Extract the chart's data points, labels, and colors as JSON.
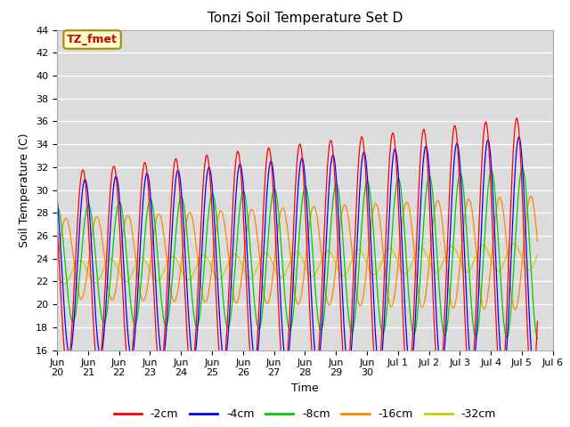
{
  "title": "Tonzi Soil Temperature Set D",
  "xlabel": "Time",
  "ylabel": "Soil Temperature (C)",
  "ylim": [
    16,
    44
  ],
  "yticks": [
    16,
    18,
    20,
    22,
    24,
    26,
    28,
    30,
    32,
    34,
    36,
    38,
    40,
    42,
    44
  ],
  "background_color": "#dcdcdc",
  "line_colors": {
    "-2cm": "#ff0000",
    "-4cm": "#0000ff",
    "-8cm": "#00cc00",
    "-16cm": "#ff8800",
    "-32cm": "#cccc00"
  },
  "legend_label": "TZ_fmet",
  "legend_box_color": "#ffffcc",
  "legend_box_edge": "#aa8800",
  "legend_text_color": "#cc0000",
  "grid_color": "#ffffff",
  "depths": [
    "-2cm",
    "-4cm",
    "-8cm",
    "-16cm",
    "-32cm"
  ],
  "depth_amplitudes_start": [
    8.5,
    7.5,
    5.0,
    3.5,
    1.0
  ],
  "depth_amplitudes_end": [
    12.0,
    10.5,
    7.5,
    5.0,
    1.2
  ],
  "depth_means_start": [
    23.0,
    23.2,
    23.5,
    24.0,
    22.8
  ],
  "depth_means_end": [
    24.5,
    24.3,
    24.5,
    24.5,
    24.2
  ],
  "phase_shifts": [
    0.0,
    0.07,
    0.18,
    0.45,
    0.9
  ],
  "n_days": 15.5,
  "points_per_day": 48,
  "xlim_start": 0,
  "xlim_end": 16,
  "xtick_positions": [
    0,
    1,
    2,
    3,
    4,
    5,
    6,
    7,
    8,
    9,
    10,
    11,
    12,
    13,
    14,
    15,
    16
  ],
  "xtick_labels": [
    "Jun\n20",
    "Jun\n21",
    "Jun\n22",
    "Jun\n23",
    "Jun\n24",
    "Jun\n25",
    "Jun\n26",
    "Jun\n27",
    "Jun\n28",
    "Jun\n29",
    "Jun\n30",
    "Jul 1",
    "Jul 2",
    "Jul 3",
    "Jul 4",
    "Jul 5",
    "Jul 6"
  ]
}
